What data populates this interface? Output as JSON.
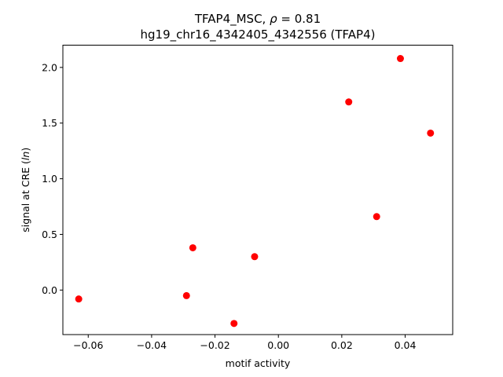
{
  "chart_data": {
    "type": "scatter",
    "title_line1_prefix": "TFAP4_MSC, ",
    "title_line1_rho": "ρ",
    "title_line1_suffix": " = 0.81",
    "title_line2": "hg19_chr16_4342405_4342556 (TFAP4)",
    "xlabel": "motif activity",
    "ylabel_prefix": "signal at CRE (",
    "ylabel_italic": "ln",
    "ylabel_suffix": ")",
    "xlim": [
      -0.068,
      0.055
    ],
    "ylim": [
      -0.4,
      2.2
    ],
    "xticks": [
      -0.06,
      -0.04,
      -0.02,
      0.0,
      0.02,
      0.04
    ],
    "xtick_labels": [
      "−0.06",
      "−0.04",
      "−0.02",
      "0.00",
      "0.02",
      "0.04"
    ],
    "yticks": [
      0.0,
      0.5,
      1.0,
      1.5,
      2.0
    ],
    "ytick_labels": [
      "0.0",
      "0.5",
      "1.0",
      "1.5",
      "2.0"
    ],
    "point_color": "#ff0000",
    "points": [
      {
        "x": -0.063,
        "y": -0.08
      },
      {
        "x": -0.029,
        "y": -0.05
      },
      {
        "x": -0.027,
        "y": 0.38
      },
      {
        "x": -0.014,
        "y": -0.3
      },
      {
        "x": -0.0075,
        "y": 0.3
      },
      {
        "x": 0.0222,
        "y": 1.69
      },
      {
        "x": 0.031,
        "y": 0.66
      },
      {
        "x": 0.0385,
        "y": 2.08
      },
      {
        "x": 0.048,
        "y": 1.41
      }
    ]
  }
}
